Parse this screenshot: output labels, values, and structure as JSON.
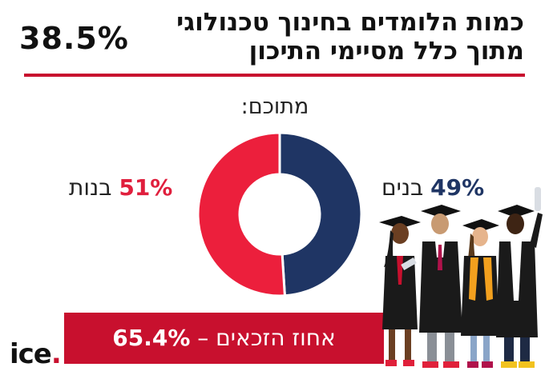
{
  "header": {
    "title_line1": "כמות הלומדים בחינוך טכנולוגי",
    "title_line2": "מתוך כלל מסיימי התיכון",
    "big_stat": "38.5%"
  },
  "subtitle": "מתוכם:",
  "chart_data": {
    "type": "pie",
    "categories": [
      "בנים",
      "בנות"
    ],
    "values": [
      49,
      51
    ],
    "value_labels": [
      "49%",
      "51%"
    ],
    "colors": [
      "#1f3564",
      "#ec1f3c"
    ]
  },
  "banner": {
    "text": "אחוז הזכאים –",
    "value": "65.4%"
  },
  "logo": {
    "text": "ice",
    "dot": "."
  },
  "illustration": "graduates-icon"
}
